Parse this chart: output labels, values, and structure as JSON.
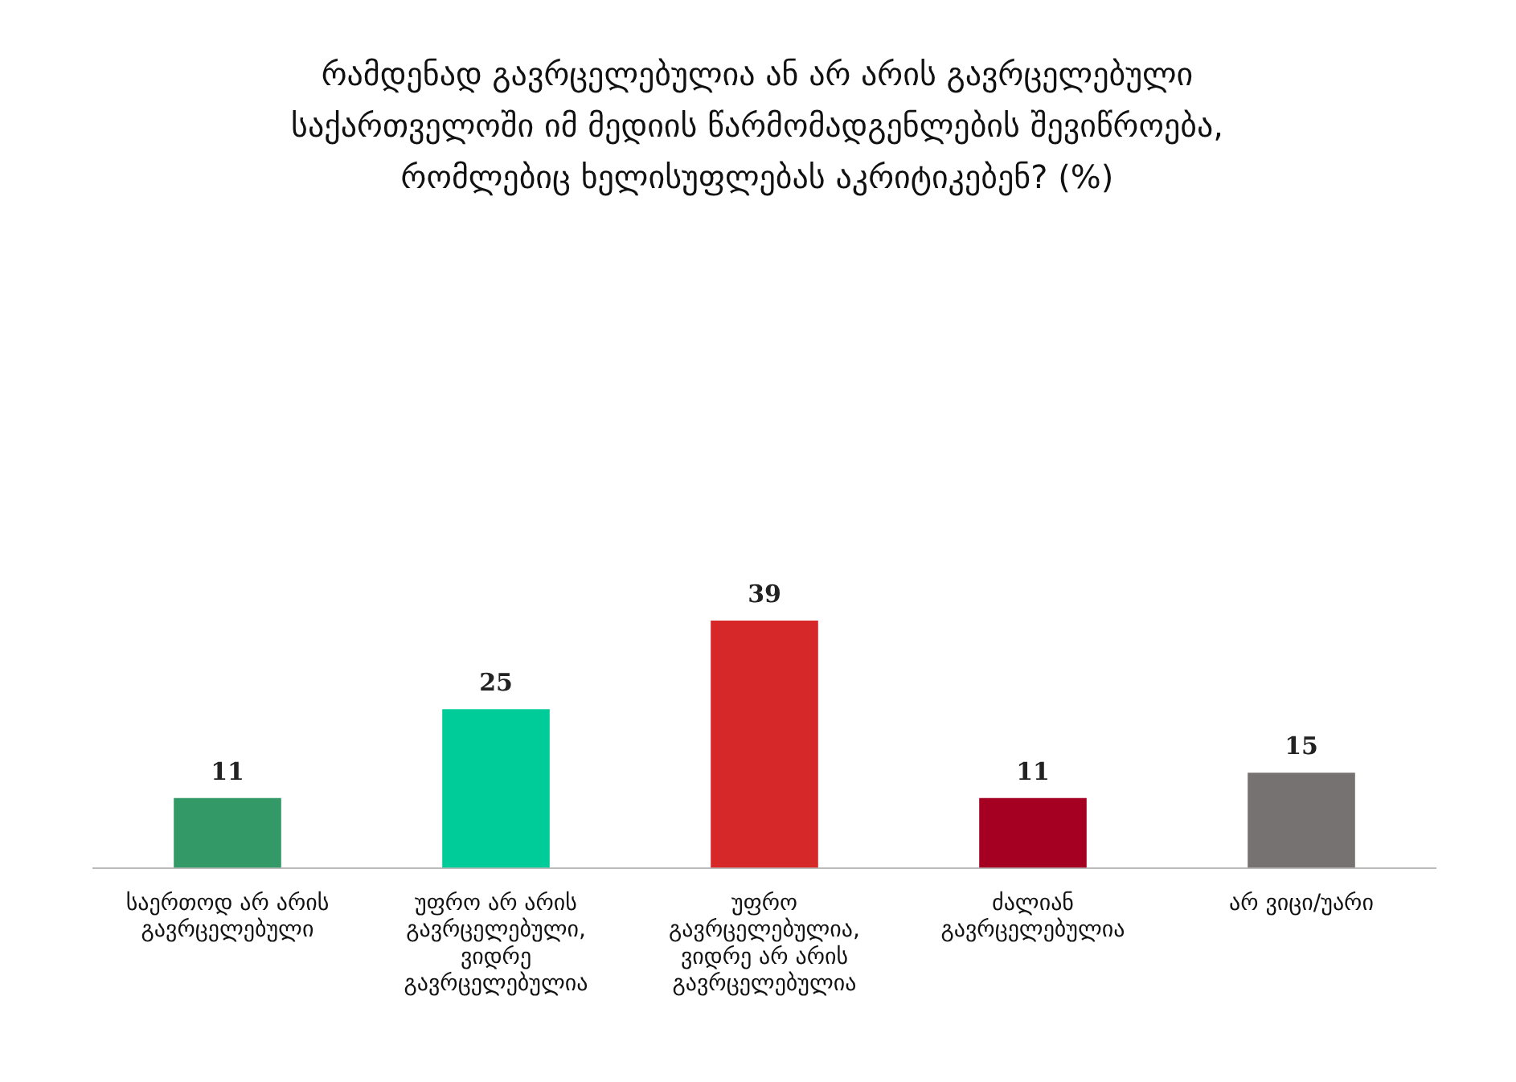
{
  "chart_data": {
    "type": "bar",
    "title": "რამდენად გავრცელებულია ან არ არის გავრცელებული საქართველოში იმ მედიის წარმომადგენლების შევიწროება, რომლებიც ხელისუფლებას აკრიტიკებენ? (%)",
    "categories": [
      "საერთოდ არ არის გავრცელებული",
      "უფრო არ არის გავრცელებული, ვიდრე გავრცელებულია",
      "უფრო გავრცელებულია, ვიდრე არ არის გავრცელებულია",
      "ძალიან გავრცელებულია",
      "არ ვიცი/უარი"
    ],
    "values": [
      11,
      25,
      39,
      11,
      15
    ],
    "colors": [
      "#339966",
      "#00cc99",
      "#d62828",
      "#a50021",
      "#777272"
    ],
    "data_labels": true,
    "grid": false,
    "legend": false
  }
}
